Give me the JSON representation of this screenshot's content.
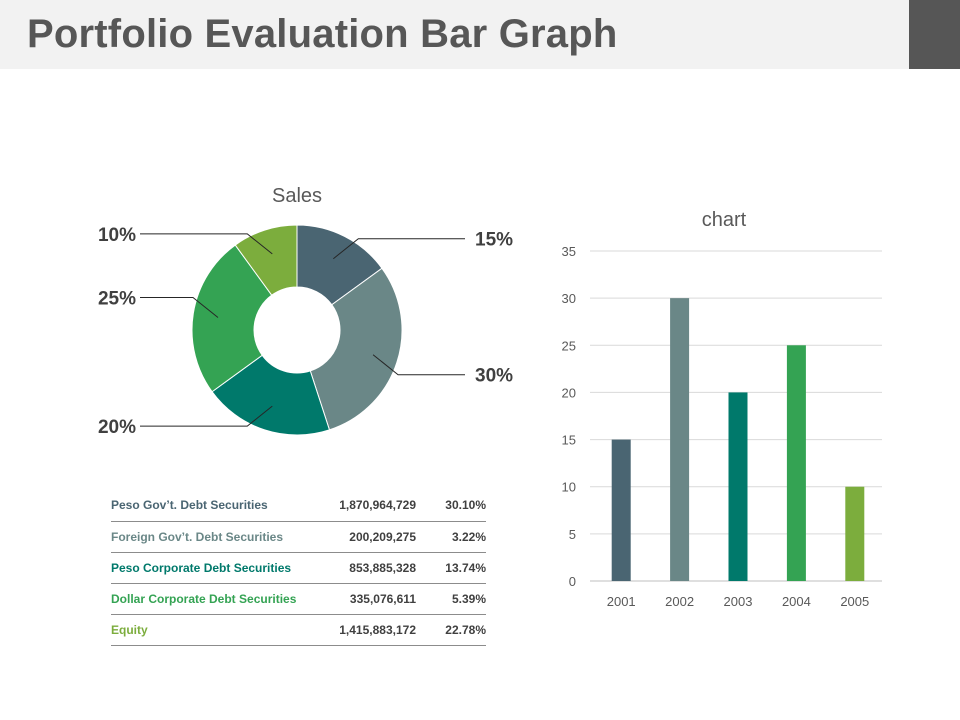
{
  "header": {
    "title": "Portfolio Evaluation Bar Graph"
  },
  "colors": {
    "dark_slate": "#4a6572",
    "grey_teal": "#6a8787",
    "teal": "#00796b",
    "green": "#34a353",
    "light_green": "#7cad3d"
  },
  "chart_data": [
    {
      "type": "pie",
      "title": "Sales",
      "slices": [
        {
          "label": "15%",
          "value": 15,
          "color": "#4a6572"
        },
        {
          "label": "30%",
          "value": 30,
          "color": "#6a8787"
        },
        {
          "label": "20%",
          "value": 20,
          "color": "#00796b"
        },
        {
          "label": "25%",
          "value": 25,
          "color": "#34a353"
        },
        {
          "label": "10%",
          "value": 10,
          "color": "#7cad3d"
        }
      ]
    },
    {
      "type": "bar",
      "title": "chart",
      "categories": [
        "2001",
        "2002",
        "2003",
        "2004",
        "2005"
      ],
      "values": [
        15,
        30,
        20,
        25,
        10
      ],
      "colors": [
        "#4a6572",
        "#6a8787",
        "#00796b",
        "#34a353",
        "#7cad3d"
      ],
      "ylim": [
        0,
        35
      ],
      "yticks": [
        0,
        5,
        10,
        15,
        20,
        25,
        30,
        35
      ],
      "grid": true
    }
  ],
  "table": {
    "rows": [
      {
        "name": "Peso Gov’t. Debt Securities",
        "amount": "1,870,964,729",
        "pct": "30.10%",
        "color": "#4a6572"
      },
      {
        "name": "Foreign Gov’t. Debt Securities",
        "amount": "200,209,275",
        "pct": "3.22%",
        "color": "#6a8787"
      },
      {
        "name": "Peso Corporate Debt Securities",
        "amount": "853,885,328",
        "pct": "13.74%",
        "color": "#00796b"
      },
      {
        "name": "Dollar Corporate Debt Securities",
        "amount": "335,076,611",
        "pct": "5.39%",
        "color": "#34a353"
      },
      {
        "name": "Equity",
        "amount": "1,415,883,172",
        "pct": "22.78%",
        "color": "#7cad3d"
      }
    ]
  }
}
